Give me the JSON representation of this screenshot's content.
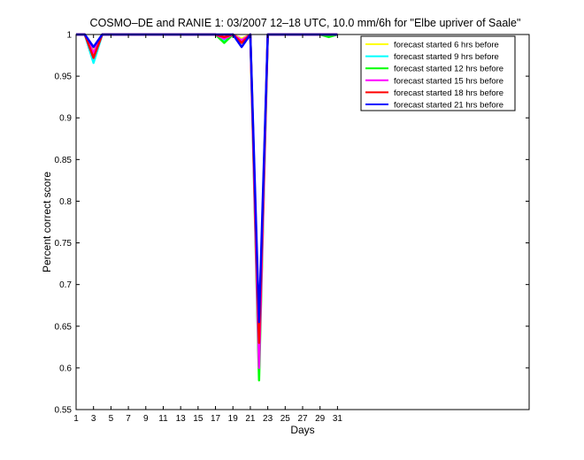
{
  "chart_data": {
    "type": "line",
    "title": "COSMO–DE and RANIE 1: 03/2007 12–18 UTC, 10.0 mm/6h for \"Elbe upriver of Saale\"",
    "xlabel": "Days",
    "ylabel": "Percent correct score",
    "xlim": [
      1,
      53
    ],
    "ylim": [
      0.55,
      1
    ],
    "xticks": [
      "1",
      "3",
      "5",
      "7",
      "9",
      "11",
      "13",
      "15",
      "17",
      "19",
      "21",
      "23",
      "25",
      "27",
      "29",
      "31"
    ],
    "yticks": [
      "0.55",
      "0.6",
      "0.65",
      "0.7",
      "0.75",
      "0.8",
      "0.85",
      "0.9",
      "0.95",
      "1"
    ],
    "grid": false,
    "legend_position": "top-right",
    "x": [
      1,
      2,
      3,
      4,
      5,
      6,
      7,
      8,
      9,
      10,
      11,
      12,
      13,
      14,
      15,
      16,
      17,
      18,
      19,
      20,
      21,
      22,
      23,
      24,
      25,
      26,
      27,
      28,
      29,
      30,
      31
    ],
    "series": [
      {
        "name": "forecast started 6 hrs before",
        "color": "#ffff00",
        "values": [
          1,
          1,
          0.98,
          1,
          1,
          1,
          1,
          1,
          1,
          1,
          1,
          1,
          1,
          1,
          1,
          1,
          1,
          0.995,
          1,
          0.995,
          1,
          0.64,
          1,
          1,
          1,
          1,
          1,
          1,
          1,
          1,
          1
        ]
      },
      {
        "name": "forecast started 9 hrs before",
        "color": "#00ffff",
        "values": [
          1,
          1,
          0.966,
          1,
          1,
          1,
          1,
          1,
          1,
          1,
          1,
          1,
          1,
          1,
          1,
          1,
          1,
          0.993,
          1,
          0.993,
          1,
          0.62,
          1,
          1,
          1,
          1,
          1,
          1,
          1,
          0.998,
          1
        ]
      },
      {
        "name": "forecast started 12 hrs before",
        "color": "#00ff00",
        "values": [
          1,
          1,
          0.975,
          1,
          1,
          1,
          1,
          1,
          1,
          1,
          1,
          1,
          1,
          1,
          1,
          1,
          1,
          0.99,
          1,
          0.99,
          1,
          0.585,
          1,
          1,
          1,
          1,
          1,
          1,
          1,
          0.997,
          1
        ]
      },
      {
        "name": "forecast started 15 hrs before",
        "color": "#ff00ff",
        "values": [
          1,
          1,
          0.978,
          1,
          1,
          1,
          1,
          1,
          1,
          1,
          1,
          1,
          1,
          1,
          1,
          1,
          1,
          0.995,
          1,
          0.993,
          1,
          0.6,
          1,
          1,
          1,
          1,
          1,
          1,
          1,
          1,
          1
        ]
      },
      {
        "name": "forecast started 18 hrs before",
        "color": "#ff0000",
        "values": [
          1,
          1,
          0.972,
          1,
          1,
          1,
          1,
          1,
          1,
          1,
          1,
          1,
          1,
          1,
          1,
          1,
          1,
          0.997,
          1,
          0.99,
          1,
          0.63,
          1,
          1,
          1,
          1,
          1,
          1,
          1,
          1,
          1
        ]
      },
      {
        "name": "forecast started 21 hrs before",
        "color": "#0000ff",
        "values": [
          1,
          1,
          0.985,
          1,
          1,
          1,
          1,
          1,
          1,
          1,
          1,
          1,
          1,
          1,
          1,
          1,
          1,
          1,
          1,
          0.985,
          1,
          0.655,
          1,
          1,
          1,
          1,
          1,
          1,
          1,
          1,
          1
        ]
      }
    ]
  }
}
